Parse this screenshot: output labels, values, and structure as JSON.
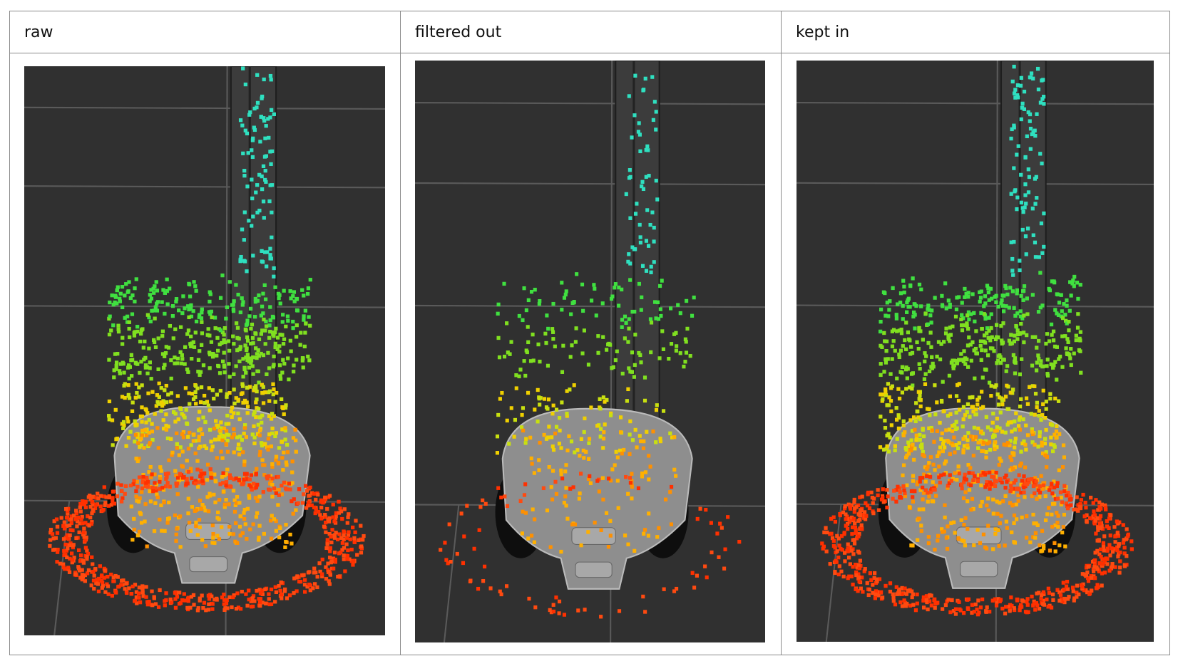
{
  "table": {
    "headers": [
      "raw",
      "filtered out",
      "kept in"
    ]
  }
}
